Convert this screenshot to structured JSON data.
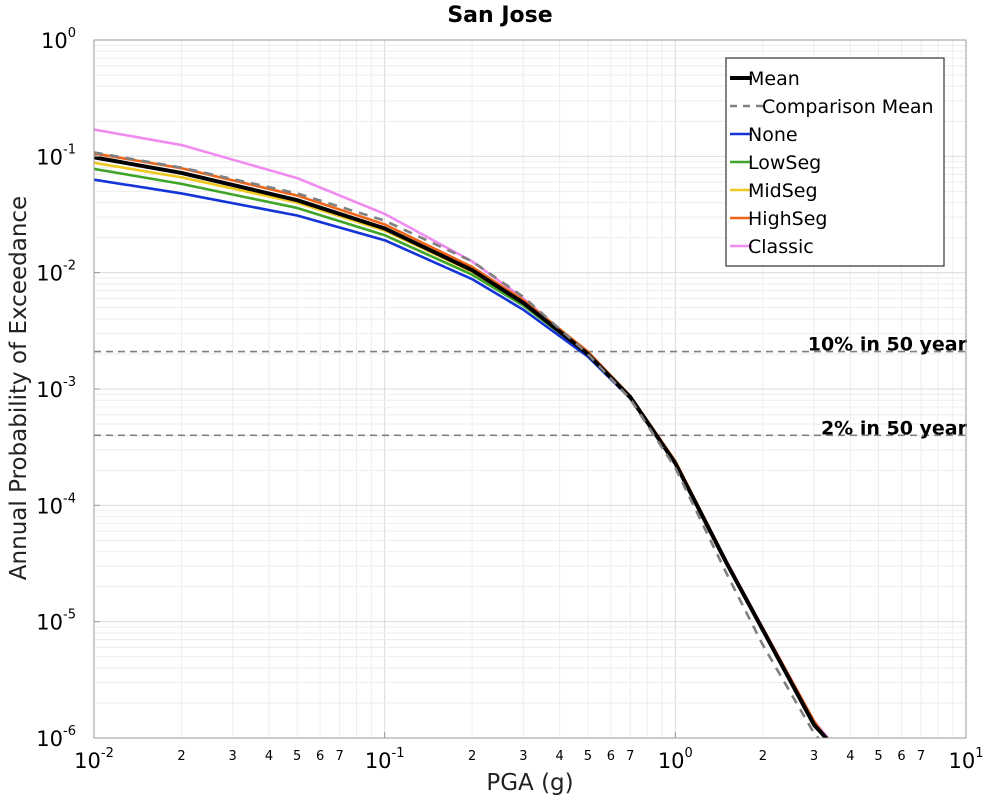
{
  "chart_data": {
    "type": "line",
    "title": "San Jose",
    "xlabel": "PGA (g)",
    "ylabel": "Annual Probability of Exceedance",
    "x_scale": "log",
    "y_scale": "log",
    "xlim": [
      0.01,
      10
    ],
    "ylim": [
      1e-06,
      1
    ],
    "grid": true,
    "legend_position": "top-right",
    "x_ticks": [
      {
        "value": 0.01,
        "base": "10",
        "exp": "-2"
      },
      {
        "value": 0.1,
        "base": "10",
        "exp": "-1"
      },
      {
        "value": 1,
        "base": "10",
        "exp": "0"
      },
      {
        "value": 10,
        "base": "10",
        "exp": "1"
      }
    ],
    "y_ticks": [
      {
        "value": 1,
        "base": "10",
        "exp": "0"
      },
      {
        "value": 0.1,
        "base": "10",
        "exp": "-1"
      },
      {
        "value": 0.01,
        "base": "10",
        "exp": "-2"
      },
      {
        "value": 0.001,
        "base": "10",
        "exp": "-3"
      },
      {
        "value": 0.0001,
        "base": "10",
        "exp": "-4"
      },
      {
        "value": 1e-05,
        "base": "10",
        "exp": "-5"
      },
      {
        "value": 1e-06,
        "base": "10",
        "exp": "-6"
      }
    ],
    "x_minor_ticks": [
      {
        "value": 0.02,
        "label": "2"
      },
      {
        "value": 0.03,
        "label": "3"
      },
      {
        "value": 0.04,
        "label": "4"
      },
      {
        "value": 0.05,
        "label": "5"
      },
      {
        "value": 0.06,
        "label": "6"
      },
      {
        "value": 0.07,
        "label": "7"
      },
      {
        "value": 0.2,
        "label": "2"
      },
      {
        "value": 0.3,
        "label": "3"
      },
      {
        "value": 0.4,
        "label": "4"
      },
      {
        "value": 0.5,
        "label": "5"
      },
      {
        "value": 0.6,
        "label": "6"
      },
      {
        "value": 0.7,
        "label": "7"
      },
      {
        "value": 2,
        "label": "2"
      },
      {
        "value": 3,
        "label": "3"
      },
      {
        "value": 4,
        "label": "4"
      },
      {
        "value": 5,
        "label": "5"
      },
      {
        "value": 6,
        "label": "6"
      },
      {
        "value": 7,
        "label": "7"
      }
    ],
    "reference_lines": [
      {
        "label": "10% in 50 year",
        "y": 0.0021,
        "color": "#808080"
      },
      {
        "label": "2% in 50 year",
        "y": 0.0004,
        "color": "#808080"
      }
    ],
    "series": [
      {
        "name": "Mean",
        "color": "#000000",
        "dash": "solid",
        "width": "thick",
        "x": [
          0.01,
          0.02,
          0.05,
          0.1,
          0.2,
          0.3,
          0.5,
          0.7,
          1.0,
          1.5,
          2.0,
          3.0,
          3.3
        ],
        "y": [
          0.098,
          0.072,
          0.042,
          0.024,
          0.0105,
          0.0055,
          0.002,
          0.00085,
          0.00023,
          3.2e-05,
          8.5e-06,
          1.3e-06,
          1e-06
        ]
      },
      {
        "name": "Comparison Mean",
        "color": "#808080",
        "dash": "dashed",
        "width": "medium",
        "x": [
          0.01,
          0.02,
          0.05,
          0.1,
          0.2,
          0.3,
          0.5,
          0.7,
          1.0,
          1.5,
          2.0,
          3.0,
          3.1
        ],
        "y": [
          0.108,
          0.08,
          0.048,
          0.028,
          0.0125,
          0.0062,
          0.002,
          0.00082,
          0.00021,
          2.6e-05,
          6.3e-06,
          1.1e-06,
          1e-06
        ]
      },
      {
        "name": "None",
        "color": "#1434d8",
        "dash": "solid",
        "width": "medium",
        "x": [
          0.01,
          0.02,
          0.05,
          0.1,
          0.2,
          0.3,
          0.5,
          0.7,
          1.0,
          1.5,
          2.0,
          3.0,
          3.3
        ],
        "y": [
          0.063,
          0.048,
          0.031,
          0.019,
          0.0088,
          0.0048,
          0.0019,
          0.00083,
          0.00023,
          3.2e-05,
          8.5e-06,
          1.3e-06,
          1e-06
        ]
      },
      {
        "name": "LowSeg",
        "color": "#3fa52a",
        "dash": "solid",
        "width": "medium",
        "x": [
          0.01,
          0.02,
          0.05,
          0.1,
          0.2,
          0.3,
          0.5,
          0.7,
          1.0,
          1.5,
          2.0,
          3.0,
          3.3
        ],
        "y": [
          0.078,
          0.058,
          0.036,
          0.021,
          0.0096,
          0.0052,
          0.002,
          0.00085,
          0.00023,
          3.2e-05,
          8.5e-06,
          1.3e-06,
          1e-06
        ]
      },
      {
        "name": "MidSeg",
        "color": "#f0c81e",
        "dash": "solid",
        "width": "medium",
        "x": [
          0.01,
          0.02,
          0.05,
          0.1,
          0.2,
          0.3,
          0.5,
          0.7,
          1.0,
          1.5,
          2.0,
          3.0,
          3.3
        ],
        "y": [
          0.088,
          0.066,
          0.04,
          0.023,
          0.0102,
          0.0054,
          0.002,
          0.00085,
          0.00023,
          3.2e-05,
          8.5e-06,
          1.3e-06,
          1e-06
        ]
      },
      {
        "name": "HighSeg",
        "color": "#f06418",
        "dash": "solid",
        "width": "medium",
        "x": [
          0.01,
          0.02,
          0.05,
          0.1,
          0.2,
          0.3,
          0.5,
          0.7,
          1.0,
          1.5,
          2.0,
          3.0,
          3.3
        ],
        "y": [
          0.106,
          0.079,
          0.046,
          0.026,
          0.0112,
          0.0058,
          0.0021,
          0.00087,
          0.00024,
          3.3e-05,
          8.8e-06,
          1.4e-06,
          1e-06
        ]
      },
      {
        "name": "Classic",
        "color": "#f08cf0",
        "dash": "solid",
        "width": "medium",
        "x": [
          0.01,
          0.02,
          0.05,
          0.1,
          0.2,
          0.3,
          0.5,
          0.7,
          1.0,
          1.5,
          2.0,
          3.0,
          3.35
        ],
        "y": [
          0.17,
          0.125,
          0.065,
          0.032,
          0.0125,
          0.006,
          0.002,
          0.00085,
          0.00023,
          3.3e-05,
          8.8e-06,
          1.4e-06,
          1e-06
        ]
      }
    ]
  }
}
